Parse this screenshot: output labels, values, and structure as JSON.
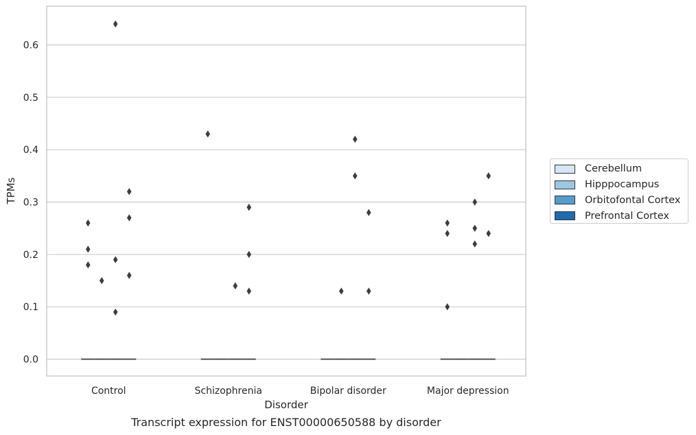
{
  "chart_data": {
    "type": "box",
    "caption": "Transcript expression for ENST00000650588 by disorder",
    "xlabel": "Disorder",
    "ylabel": "TPMs",
    "ylim": [
      -0.032,
      0.673
    ],
    "yticks": [
      "0.0",
      "0.1",
      "0.2",
      "0.3",
      "0.4",
      "0.5",
      "0.6"
    ],
    "ytick_values": [
      0.0,
      0.1,
      0.2,
      0.3,
      0.4,
      0.5,
      0.6
    ],
    "grid": "horizontal",
    "legend_placement": "right",
    "categories": [
      "Control",
      "Schizophrenia",
      "Bipolar disorder",
      "Major depression"
    ],
    "series": [
      {
        "name": "Cerebellum",
        "color": "#d6e6f4",
        "median": [
          0,
          0,
          0,
          0
        ],
        "outliers": [
          [
            0.26,
            0.21,
            0.18
          ],
          [
            0.43
          ],
          [],
          [
            0.26,
            0.24,
            0.1
          ]
        ]
      },
      {
        "name": "Hipppocampus",
        "color": "#9ac8e0",
        "median": [
          0,
          0,
          0,
          0
        ],
        "outliers": [
          [
            0.15
          ],
          [],
          [
            0.13
          ],
          []
        ]
      },
      {
        "name": "Orbitofontal Cortex",
        "color": "#529dcc",
        "median": [
          0,
          0,
          0,
          0
        ],
        "outliers": [
          [
            0.64,
            0.19,
            0.09
          ],
          [
            0.14
          ],
          [
            0.42,
            0.35
          ],
          [
            0.3,
            0.25,
            0.22
          ]
        ]
      },
      {
        "name": "Prefrontal Cortex",
        "color": "#1d6cb1",
        "median": [
          0,
          0,
          0,
          0
        ],
        "outliers": [
          [
            0.32,
            0.27,
            0.16
          ],
          [
            0.2,
            0.13
          ],
          [],
          [
            0.35,
            0.24
          ]
        ]
      }
    ],
    "extra_outliers": [
      {
        "category": 1,
        "series": 3,
        "offset": 1,
        "values": [
          0.29
        ]
      },
      {
        "category": 2,
        "series": 3,
        "offset": 0,
        "values": [
          0.28,
          0.13
        ]
      }
    ]
  }
}
